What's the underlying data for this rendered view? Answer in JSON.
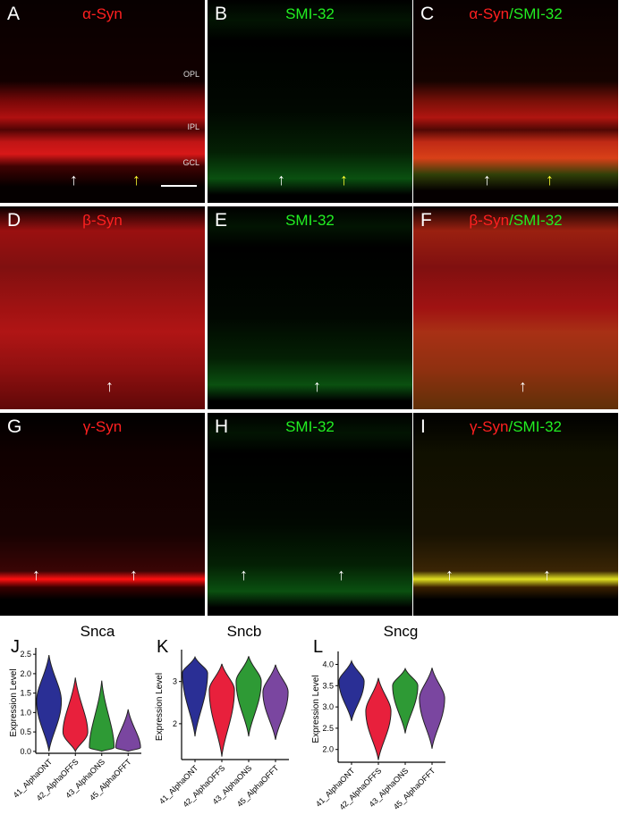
{
  "panels": [
    {
      "id": "A",
      "title_parts": [
        {
          "text": "α-Syn",
          "color": "red"
        }
      ],
      "layers": [
        "OPL",
        "IPL",
        "GCL"
      ],
      "arrows": [
        "white",
        "yellow"
      ],
      "stain": "red-alpha"
    },
    {
      "id": "B",
      "title_parts": [
        {
          "text": "SMI-32",
          "color": "green"
        }
      ],
      "arrows": [
        "white",
        "yellow"
      ],
      "stain": "green"
    },
    {
      "id": "C",
      "title_parts": [
        {
          "text": "α-Syn",
          "color": "red"
        },
        {
          "text": "/",
          "color": "green"
        },
        {
          "text": "SMI-32",
          "color": "green"
        }
      ],
      "arrows": [
        "white",
        "yellow"
      ],
      "stain": "merge-alpha"
    },
    {
      "id": "D",
      "title_parts": [
        {
          "text": "β-Syn",
          "color": "red"
        }
      ],
      "arrows": [
        "white"
      ],
      "stain": "red-beta"
    },
    {
      "id": "E",
      "title_parts": [
        {
          "text": "SMI-32",
          "color": "green"
        }
      ],
      "arrows": [
        "white"
      ],
      "stain": "green"
    },
    {
      "id": "F",
      "title_parts": [
        {
          "text": "β-Syn",
          "color": "red"
        },
        {
          "text": "/",
          "color": "green"
        },
        {
          "text": "SMI-32",
          "color": "green"
        }
      ],
      "arrows": [
        "white"
      ],
      "stain": "merge-beta"
    },
    {
      "id": "G",
      "title_parts": [
        {
          "text": "γ-Syn",
          "color": "red"
        }
      ],
      "arrows": [
        "white",
        "white"
      ],
      "stain": "red-gamma"
    },
    {
      "id": "H",
      "title_parts": [
        {
          "text": "SMI-32",
          "color": "green"
        }
      ],
      "arrows": [
        "white",
        "white"
      ],
      "stain": "green"
    },
    {
      "id": "I",
      "title_parts": [
        {
          "text": "γ-Syn",
          "color": "red"
        },
        {
          "text": "/",
          "color": "green"
        },
        {
          "text": "SMI-32",
          "color": "green"
        }
      ],
      "arrows": [
        "white",
        "white"
      ],
      "stain": "merge-gamma"
    }
  ],
  "colors": {
    "red": "#ff2020",
    "green": "#22ee22",
    "yellow": "#ffff30",
    "ONT": "#2a2f95",
    "OFFS": "#e8203c",
    "ONS": "#2e9a35",
    "OFFT": "#7a46a0"
  },
  "chart_data": [
    {
      "type": "violin",
      "panel": "J",
      "title": "Snca",
      "ylabel": "Expression Level",
      "categories": [
        "41_AlphaONT",
        "42_AlphaOFFS",
        "43_AlphaONS",
        "45_AlphaOFFT"
      ],
      "yticks": [
        "0.0",
        "0.5",
        "1.0",
        "1.5",
        "2.0",
        "2.5"
      ],
      "ylim": [
        -0.05,
        2.55
      ],
      "violins": [
        {
          "min": 0,
          "max": 2.48,
          "mode": 1.3
        },
        {
          "min": 0,
          "max": 1.9,
          "mode": 0.5
        },
        {
          "min": 0,
          "max": 1.82,
          "mode": 0.1
        },
        {
          "min": 0,
          "max": 1.08,
          "mode": 0.1
        }
      ]
    },
    {
      "type": "violin",
      "panel": "K",
      "title": "Sncb",
      "ylabel": "Expression Level",
      "categories": [
        "41_AlphaONT",
        "42_AlphaOFFS",
        "43_AlphaONS",
        "45_AlphaOFFT"
      ],
      "yticks": [
        "2",
        "3"
      ],
      "ylim": [
        1.15,
        3.65
      ],
      "violins": [
        {
          "min": 1.7,
          "max": 3.58,
          "mode": 3.2
        },
        {
          "min": 1.22,
          "max": 3.42,
          "mode": 2.8
        },
        {
          "min": 1.7,
          "max": 3.6,
          "mode": 3.0
        },
        {
          "min": 1.62,
          "max": 3.4,
          "mode": 2.75
        }
      ]
    },
    {
      "type": "violin",
      "panel": "L",
      "title": "Sncg",
      "ylabel": "Expression Level",
      "categories": [
        "41_AlphaONT",
        "42_AlphaOFFS",
        "43_AlphaONS",
        "45_AlphaOFFT"
      ],
      "yticks": [
        "2.0",
        "2.5",
        "3.0",
        "3.5",
        "4.0"
      ],
      "ylim": [
        1.7,
        4.2
      ],
      "violins": [
        {
          "min": 2.67,
          "max": 4.08,
          "mode": 3.6
        },
        {
          "min": 1.75,
          "max": 3.68,
          "mode": 2.9
        },
        {
          "min": 2.38,
          "max": 3.9,
          "mode": 3.5
        },
        {
          "min": 2.02,
          "max": 3.92,
          "mode": 3.2
        }
      ]
    }
  ]
}
